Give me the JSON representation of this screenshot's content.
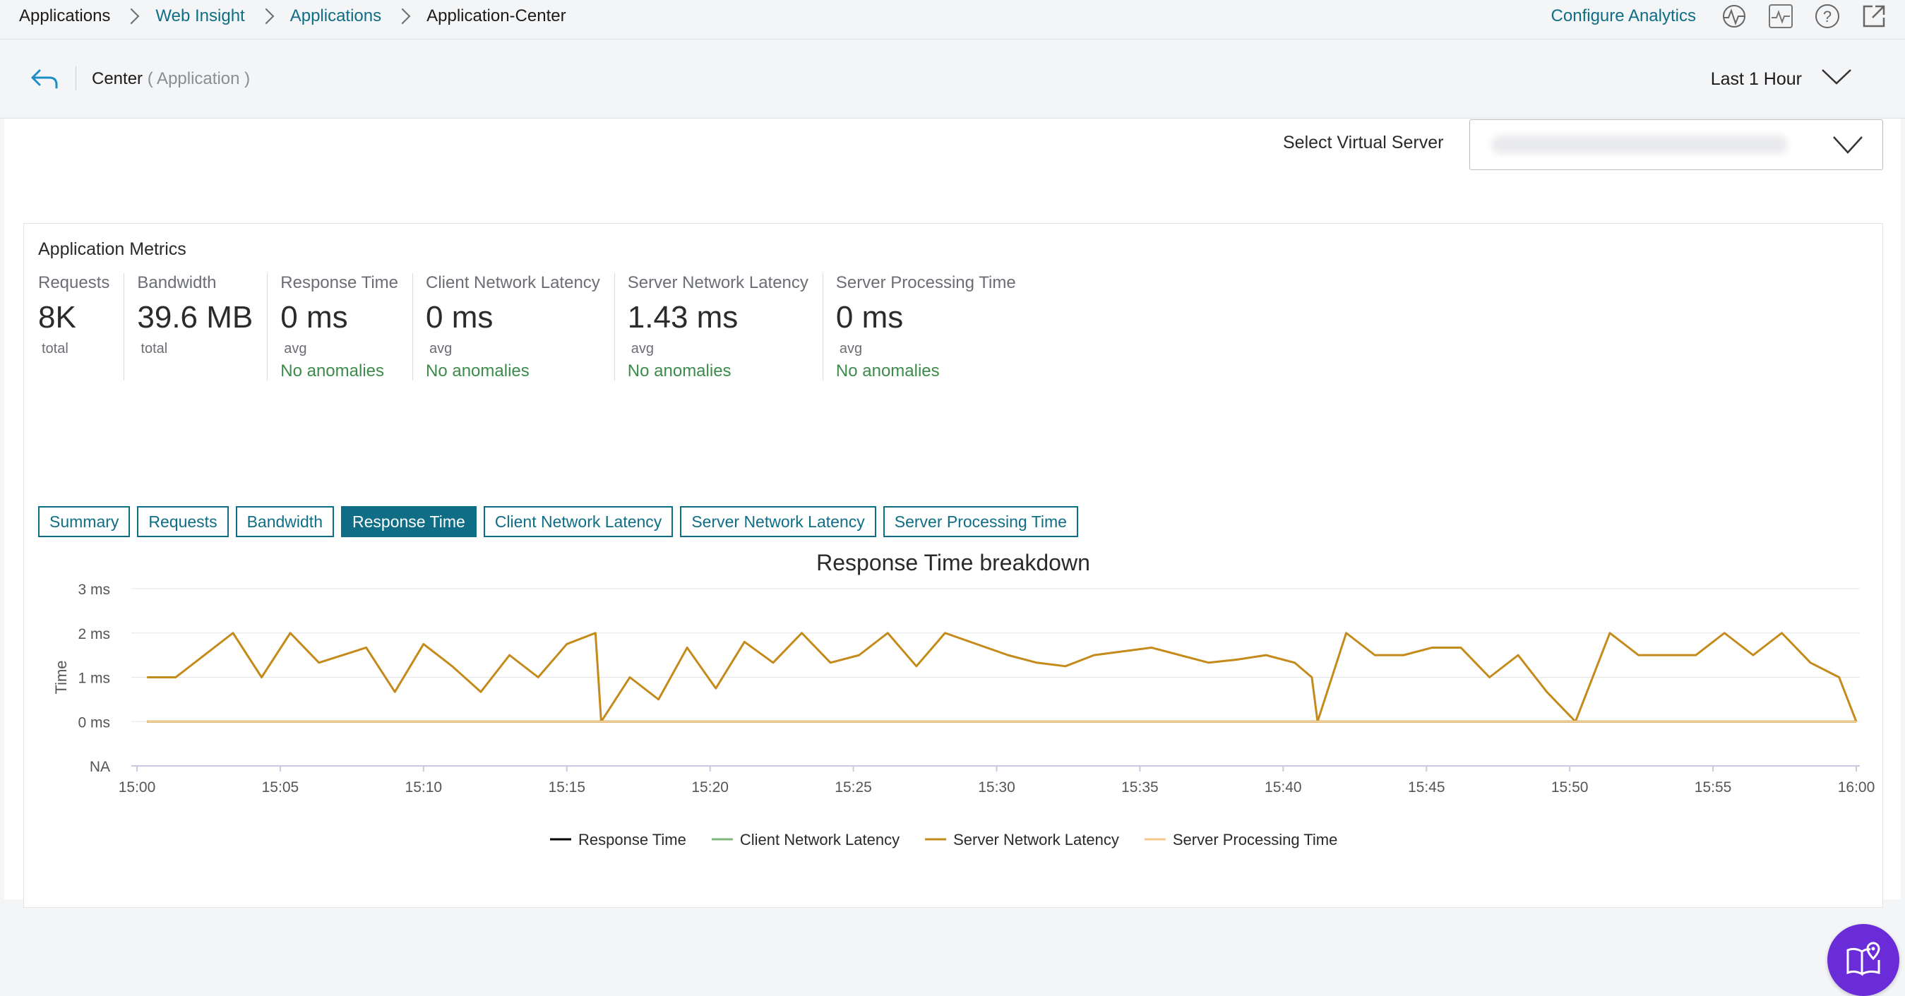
{
  "breadcrumb": [
    "Applications",
    "Web Insight",
    "Applications",
    "Application-Center"
  ],
  "top_links": {
    "configure": "Configure Analytics"
  },
  "header": {
    "title": "Center",
    "subtitle": "( Application )",
    "time_range": "Last 1 Hour"
  },
  "virtual_server": {
    "label": "Select Virtual Server",
    "value": ""
  },
  "metrics_title": "Application Metrics",
  "metrics": [
    {
      "label": "Requests",
      "value": "8K",
      "unit": "total",
      "status": ""
    },
    {
      "label": "Bandwidth",
      "value": "39.6 MB",
      "unit": "total",
      "status": ""
    },
    {
      "label": "Response Time",
      "value": "0 ms",
      "unit": "avg",
      "status": "No anomalies"
    },
    {
      "label": "Client Network Latency",
      "value": "0 ms",
      "unit": "avg",
      "status": "No anomalies"
    },
    {
      "label": "Server Network Latency",
      "value": "1.43 ms",
      "unit": "avg",
      "status": "No anomalies"
    },
    {
      "label": "Server Processing Time",
      "value": "0 ms",
      "unit": "avg",
      "status": "No anomalies"
    }
  ],
  "tabs": [
    "Summary",
    "Requests",
    "Bandwidth",
    "Response Time",
    "Client Network Latency",
    "Server Network Latency",
    "Server Processing Time"
  ],
  "active_tab": 3,
  "colors": {
    "accent": "#0f6e86",
    "good": "#3b8c4a",
    "fab": "#6a2bd9"
  },
  "chart_data": {
    "type": "line",
    "title": "Response Time breakdown",
    "ylabel": "Time",
    "xlabel": "",
    "x_ticks": [
      "15:00",
      "15:05",
      "15:10",
      "15:15",
      "15:20",
      "15:25",
      "15:30",
      "15:35",
      "15:40",
      "15:45",
      "15:50",
      "15:55",
      "16:00"
    ],
    "y_ticks": [
      "NA",
      "0 ms",
      "1 ms",
      "2 ms",
      "3 ms"
    ],
    "ylim": [
      -1,
      3
    ],
    "xlim_minutes_after_1500": [
      0,
      60
    ],
    "grid": true,
    "legend_position": "bottom",
    "series": [
      {
        "name": "Response Time",
        "color": "#000000",
        "constant": 0
      },
      {
        "name": "Client Network Latency",
        "color": "#7fb77e",
        "constant": 0
      },
      {
        "name": "Server Network Latency",
        "color": "#c48a1a",
        "points": [
          [
            0.35,
            1
          ],
          [
            1.35,
            1
          ],
          [
            3.35,
            2
          ],
          [
            4.35,
            1
          ],
          [
            5.35,
            2
          ],
          [
            6.35,
            1.33
          ],
          [
            8.0,
            1.67
          ],
          [
            9.0,
            0.67
          ],
          [
            10.0,
            1.75
          ],
          [
            11.0,
            1.25
          ],
          [
            12.0,
            0.67
          ],
          [
            13.0,
            1.5
          ],
          [
            14.0,
            1
          ],
          [
            15.0,
            1.75
          ],
          [
            16.0,
            2
          ],
          [
            16.2,
            0
          ],
          [
            17.2,
            1
          ],
          [
            18.2,
            0.5
          ],
          [
            19.2,
            1.67
          ],
          [
            20.2,
            0.75
          ],
          [
            21.2,
            1.8
          ],
          [
            22.2,
            1.33
          ],
          [
            23.2,
            2
          ],
          [
            24.2,
            1.33
          ],
          [
            25.2,
            1.5
          ],
          [
            26.2,
            2
          ],
          [
            27.2,
            1.25
          ],
          [
            28.2,
            2
          ],
          [
            30.4,
            1.5
          ],
          [
            31.4,
            1.33
          ],
          [
            32.4,
            1.25
          ],
          [
            33.4,
            1.5
          ],
          [
            35.4,
            1.67
          ],
          [
            37.4,
            1.33
          ],
          [
            38.4,
            1.4
          ],
          [
            39.4,
            1.5
          ],
          [
            40.4,
            1.33
          ],
          [
            41.0,
            1
          ],
          [
            41.2,
            0
          ],
          [
            42.2,
            2
          ],
          [
            43.2,
            1.5
          ],
          [
            44.2,
            1.5
          ],
          [
            45.2,
            1.67
          ],
          [
            46.2,
            1.67
          ],
          [
            47.2,
            1
          ],
          [
            48.2,
            1.5
          ],
          [
            49.2,
            0.67
          ],
          [
            50.2,
            0
          ],
          [
            51.4,
            2
          ],
          [
            52.4,
            1.5
          ],
          [
            53.4,
            1.5
          ],
          [
            54.4,
            1.5
          ],
          [
            55.4,
            2
          ],
          [
            56.4,
            1.5
          ],
          [
            57.4,
            2
          ],
          [
            58.4,
            1.33
          ],
          [
            59.4,
            1
          ],
          [
            60.0,
            0
          ]
        ]
      },
      {
        "name": "Server Processing Time",
        "color": "#f5c98a",
        "constant": 0
      }
    ]
  }
}
